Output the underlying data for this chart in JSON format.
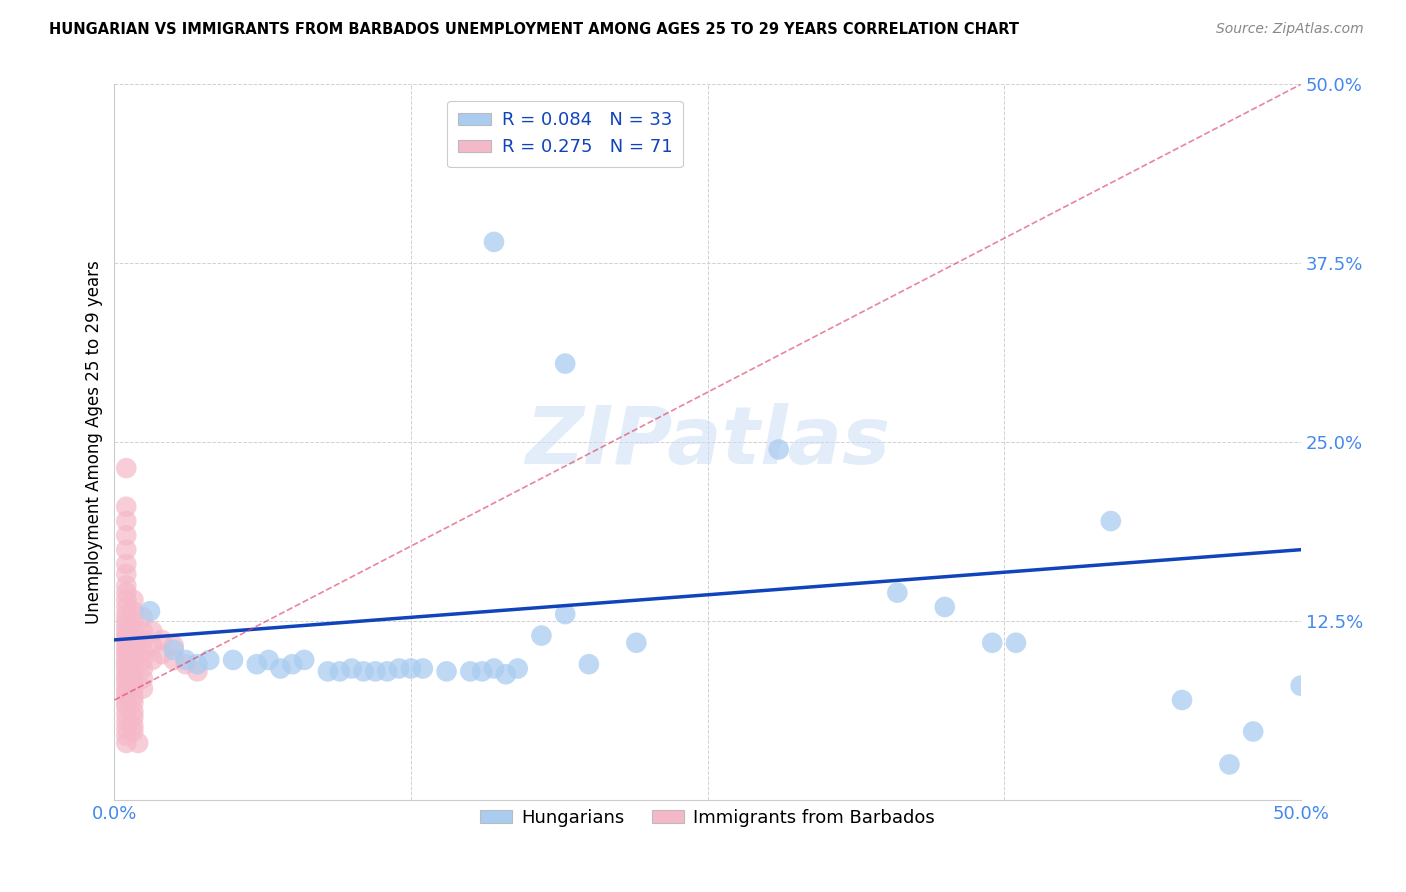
{
  "title": "HUNGARIAN VS IMMIGRANTS FROM BARBADOS UNEMPLOYMENT AMONG AGES 25 TO 29 YEARS CORRELATION CHART",
  "source": "Source: ZipAtlas.com",
  "ylabel": "Unemployment Among Ages 25 to 29 years",
  "xlim": [
    0,
    0.5
  ],
  "ylim": [
    0,
    0.5
  ],
  "xtick_vals": [
    0.0,
    0.125,
    0.25,
    0.375,
    0.5
  ],
  "xticklabels": [
    "0.0%",
    "",
    "",
    "",
    "50.0%"
  ],
  "ytick_vals": [
    0.0,
    0.125,
    0.25,
    0.375,
    0.5
  ],
  "yticklabels": [
    "",
    "12.5%",
    "25.0%",
    "37.5%",
    "50.0%"
  ],
  "blue_color": "#aaccf0",
  "pink_color": "#f5b8c8",
  "blue_line_color": "#1144bb",
  "pink_line_color": "#dd4466",
  "tick_label_color": "#4488ee",
  "watermark": "ZIPatlas",
  "blue_line_x0": 0.0,
  "blue_line_y0": 0.112,
  "blue_line_x1": 0.5,
  "blue_line_y1": 0.175,
  "pink_line_x0": 0.0,
  "pink_line_y0": 0.07,
  "pink_line_x1": 0.5,
  "pink_line_y1": 0.5,
  "blue_scatter": [
    [
      0.015,
      0.132
    ],
    [
      0.025,
      0.105
    ],
    [
      0.03,
      0.098
    ],
    [
      0.035,
      0.095
    ],
    [
      0.04,
      0.098
    ],
    [
      0.05,
      0.098
    ],
    [
      0.06,
      0.095
    ],
    [
      0.065,
      0.098
    ],
    [
      0.07,
      0.092
    ],
    [
      0.075,
      0.095
    ],
    [
      0.08,
      0.098
    ],
    [
      0.09,
      0.09
    ],
    [
      0.095,
      0.09
    ],
    [
      0.1,
      0.092
    ],
    [
      0.105,
      0.09
    ],
    [
      0.11,
      0.09
    ],
    [
      0.115,
      0.09
    ],
    [
      0.12,
      0.092
    ],
    [
      0.125,
      0.092
    ],
    [
      0.13,
      0.092
    ],
    [
      0.14,
      0.09
    ],
    [
      0.15,
      0.09
    ],
    [
      0.155,
      0.09
    ],
    [
      0.16,
      0.092
    ],
    [
      0.165,
      0.088
    ],
    [
      0.17,
      0.092
    ],
    [
      0.18,
      0.115
    ],
    [
      0.19,
      0.13
    ],
    [
      0.2,
      0.095
    ],
    [
      0.22,
      0.11
    ],
    [
      0.16,
      0.39
    ],
    [
      0.19,
      0.305
    ],
    [
      0.28,
      0.245
    ],
    [
      0.35,
      0.135
    ],
    [
      0.42,
      0.195
    ],
    [
      0.45,
      0.07
    ],
    [
      0.47,
      0.025
    ],
    [
      0.48,
      0.048
    ],
    [
      0.5,
      0.08
    ],
    [
      0.33,
      0.145
    ],
    [
      0.37,
      0.11
    ],
    [
      0.38,
      0.11
    ]
  ],
  "pink_scatter": [
    [
      0.005,
      0.232
    ],
    [
      0.005,
      0.205
    ],
    [
      0.005,
      0.195
    ],
    [
      0.005,
      0.185
    ],
    [
      0.005,
      0.175
    ],
    [
      0.005,
      0.165
    ],
    [
      0.005,
      0.158
    ],
    [
      0.005,
      0.15
    ],
    [
      0.005,
      0.145
    ],
    [
      0.005,
      0.14
    ],
    [
      0.005,
      0.135
    ],
    [
      0.005,
      0.13
    ],
    [
      0.005,
      0.126
    ],
    [
      0.005,
      0.122
    ],
    [
      0.005,
      0.118
    ],
    [
      0.005,
      0.115
    ],
    [
      0.005,
      0.112
    ],
    [
      0.005,
      0.108
    ],
    [
      0.005,
      0.105
    ],
    [
      0.005,
      0.102
    ],
    [
      0.005,
      0.098
    ],
    [
      0.005,
      0.095
    ],
    [
      0.005,
      0.092
    ],
    [
      0.005,
      0.088
    ],
    [
      0.005,
      0.085
    ],
    [
      0.005,
      0.082
    ],
    [
      0.005,
      0.078
    ],
    [
      0.005,
      0.075
    ],
    [
      0.005,
      0.072
    ],
    [
      0.005,
      0.068
    ],
    [
      0.005,
      0.065
    ],
    [
      0.005,
      0.06
    ],
    [
      0.005,
      0.055
    ],
    [
      0.005,
      0.05
    ],
    [
      0.005,
      0.045
    ],
    [
      0.008,
      0.14
    ],
    [
      0.008,
      0.132
    ],
    [
      0.008,
      0.125
    ],
    [
      0.008,
      0.118
    ],
    [
      0.008,
      0.112
    ],
    [
      0.008,
      0.108
    ],
    [
      0.008,
      0.102
    ],
    [
      0.008,
      0.098
    ],
    [
      0.008,
      0.092
    ],
    [
      0.008,
      0.088
    ],
    [
      0.008,
      0.082
    ],
    [
      0.008,
      0.078
    ],
    [
      0.008,
      0.072
    ],
    [
      0.008,
      0.068
    ],
    [
      0.008,
      0.062
    ],
    [
      0.008,
      0.058
    ],
    [
      0.008,
      0.052
    ],
    [
      0.008,
      0.048
    ],
    [
      0.012,
      0.128
    ],
    [
      0.012,
      0.118
    ],
    [
      0.012,
      0.112
    ],
    [
      0.012,
      0.105
    ],
    [
      0.012,
      0.098
    ],
    [
      0.012,
      0.092
    ],
    [
      0.012,
      0.085
    ],
    [
      0.012,
      0.078
    ],
    [
      0.016,
      0.118
    ],
    [
      0.016,
      0.108
    ],
    [
      0.016,
      0.098
    ],
    [
      0.02,
      0.112
    ],
    [
      0.02,
      0.102
    ],
    [
      0.025,
      0.108
    ],
    [
      0.025,
      0.098
    ],
    [
      0.03,
      0.095
    ],
    [
      0.035,
      0.09
    ],
    [
      0.005,
      0.04
    ],
    [
      0.01,
      0.04
    ]
  ]
}
